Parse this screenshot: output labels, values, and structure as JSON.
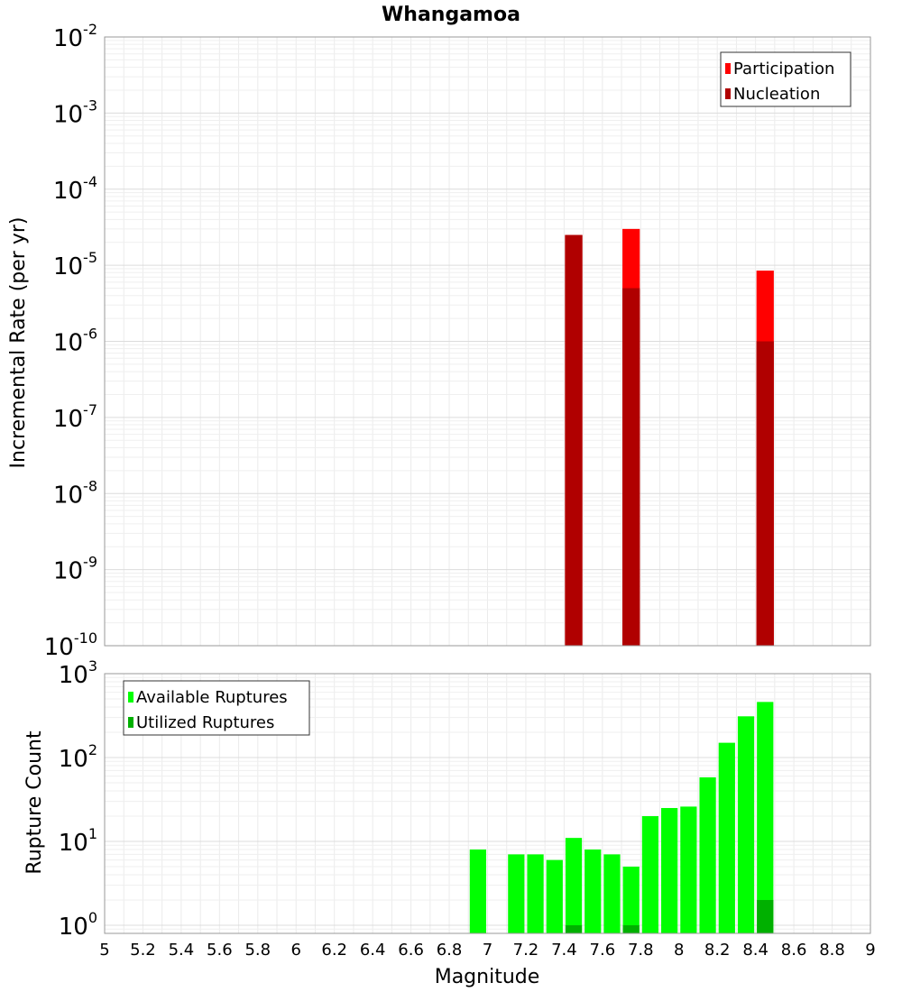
{
  "chart_data": [
    {
      "type": "bar",
      "title": "Whangamoa",
      "xlabel": "",
      "ylabel": "Incremental Rate (per yr)",
      "yscale": "log",
      "ylim": [
        1e-10,
        0.01
      ],
      "xlim": [
        5,
        9
      ],
      "grid": true,
      "legend_position": "top-right",
      "ytick_labels": [
        {
          "base": "10",
          "exp": "-10"
        },
        {
          "base": "10",
          "exp": "-9"
        },
        {
          "base": "10",
          "exp": "-8"
        },
        {
          "base": "10",
          "exp": "-7"
        },
        {
          "base": "10",
          "exp": "-6"
        },
        {
          "base": "10",
          "exp": "-5"
        },
        {
          "base": "10",
          "exp": "-4"
        },
        {
          "base": "10",
          "exp": "-3"
        },
        {
          "base": "10",
          "exp": "-2"
        }
      ],
      "series": [
        {
          "name": "Participation",
          "color": "#ff0000",
          "points": [
            {
              "x": 7.45,
              "y": 2.5e-05
            },
            {
              "x": 7.75,
              "y": 3e-05
            },
            {
              "x": 8.45,
              "y": 8.5e-06
            }
          ]
        },
        {
          "name": "Nucleation",
          "color": "#b00000",
          "points": [
            {
              "x": 7.45,
              "y": 2.5e-05
            },
            {
              "x": 7.75,
              "y": 5e-06
            },
            {
              "x": 8.45,
              "y": 1e-06
            }
          ]
        }
      ]
    },
    {
      "type": "bar",
      "xlabel": "Magnitude",
      "ylabel": "Rupture Count",
      "yscale": "log",
      "ylim": [
        0.8,
        1000
      ],
      "xlim": [
        5,
        9
      ],
      "grid": true,
      "legend_position": "top-left",
      "xtick_labels": [
        "5",
        "5.2",
        "5.4",
        "5.6",
        "5.8",
        "6",
        "6.2",
        "6.4",
        "6.6",
        "6.8",
        "7",
        "7.2",
        "7.4",
        "7.6",
        "7.8",
        "8",
        "8.2",
        "8.4",
        "8.6",
        "8.8",
        "9"
      ],
      "ytick_labels": [
        {
          "base": "10",
          "exp": "0"
        },
        {
          "base": "10",
          "exp": "1"
        },
        {
          "base": "10",
          "exp": "2"
        },
        {
          "base": "10",
          "exp": "3"
        }
      ],
      "series": [
        {
          "name": "Available Ruptures",
          "color": "#00ff00",
          "points": [
            {
              "x": 6.95,
              "y": 8
            },
            {
              "x": 7.15,
              "y": 7
            },
            {
              "x": 7.25,
              "y": 7
            },
            {
              "x": 7.35,
              "y": 6
            },
            {
              "x": 7.45,
              "y": 11
            },
            {
              "x": 7.55,
              "y": 8
            },
            {
              "x": 7.65,
              "y": 7
            },
            {
              "x": 7.75,
              "y": 5
            },
            {
              "x": 7.85,
              "y": 20
            },
            {
              "x": 7.95,
              "y": 25
            },
            {
              "x": 8.05,
              "y": 26
            },
            {
              "x": 8.15,
              "y": 58
            },
            {
              "x": 8.25,
              "y": 150
            },
            {
              "x": 8.35,
              "y": 310
            },
            {
              "x": 8.45,
              "y": 460
            }
          ]
        },
        {
          "name": "Utilized Ruptures",
          "color": "#00b000",
          "points": [
            {
              "x": 7.45,
              "y": 1
            },
            {
              "x": 7.75,
              "y": 1
            },
            {
              "x": 8.45,
              "y": 2
            }
          ]
        }
      ]
    }
  ]
}
